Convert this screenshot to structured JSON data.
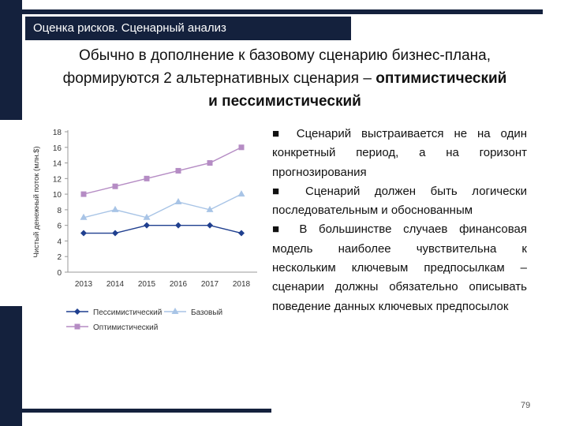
{
  "header": {
    "title": "Оценка рисков. Сценарный анализ"
  },
  "subtitle": {
    "line1": "Обычно в дополнение к базовому сценарию бизнес-плана,",
    "line2_regular": "формируются 2 альтернативных сценария – ",
    "line2_bold": "оптимистический",
    "line3_bold": "и пессимистический"
  },
  "bullets": [
    "■ Сценарий выстраивается не на один конкретный период, а на горизонт прогнозирования",
    "■ Сценарий должен быть логически последовательным и обоснованным",
    "■ В большинстве случаев финансовая модель наиболее чувствительна к нескольким ключевым предпосылкам – сценарии должны обязательно описывать поведение данных ключевых предпосылок"
  ],
  "page_number": "79",
  "chart_data": {
    "type": "line",
    "x": [
      "2013",
      "2014",
      "2015",
      "2016",
      "2017",
      "2018"
    ],
    "ylabel": "Чистый денежный поток (млн.$)",
    "xlabel": "",
    "ylim": [
      0,
      18
    ],
    "yticks": [
      "0",
      "2",
      "4",
      "6",
      "8",
      "10",
      "12",
      "14",
      "16",
      "18"
    ],
    "grid": false,
    "legend_position": "bottom",
    "series": [
      {
        "name": "Пессимистический",
        "values": [
          5,
          5,
          6,
          6,
          6,
          5
        ],
        "color": "#1f3f8f",
        "marker": "diamond"
      },
      {
        "name": "Базовый",
        "values": [
          7,
          8,
          7,
          9,
          8,
          10
        ],
        "color": "#a8c4e6",
        "marker": "triangle"
      },
      {
        "name": "Оптимистический",
        "values": [
          10,
          11,
          12,
          13,
          14,
          16
        ],
        "color": "#b58cc4",
        "marker": "square"
      }
    ]
  }
}
